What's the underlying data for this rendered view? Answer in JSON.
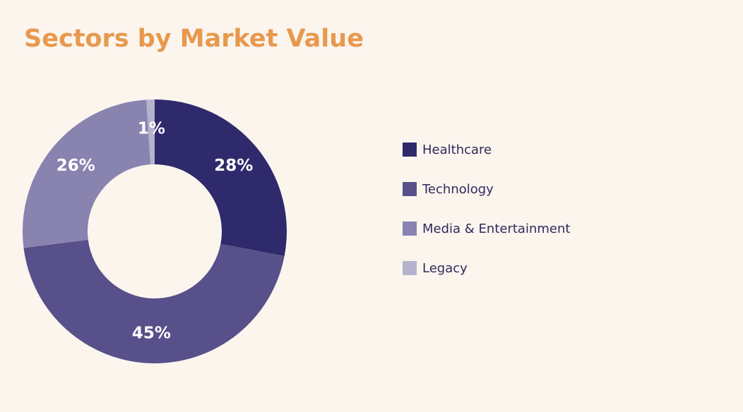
{
  "chart_data": {
    "type": "donut",
    "title": "Sectors by Market Value",
    "categories": [
      "Healthcare",
      "Technology",
      "Media & Entertainment",
      "Legacy"
    ],
    "values": [
      28,
      45,
      26,
      1
    ],
    "value_labels": [
      "28%",
      "45%",
      "26%",
      "1%"
    ],
    "colors": [
      "#2f2a6c",
      "#57508a",
      "#8983b0",
      "#b6b2ce"
    ],
    "legend": "right"
  }
}
